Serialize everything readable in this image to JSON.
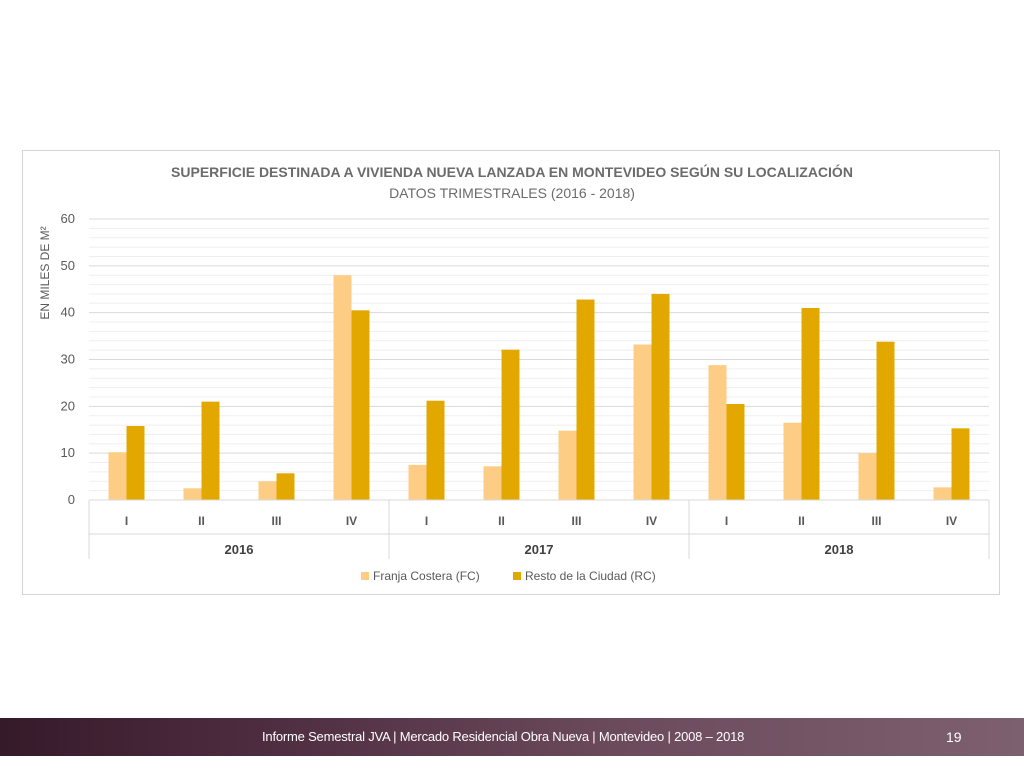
{
  "footer": {
    "text": "Informe Semestral JVA | Mercado Residencial Obra Nueva | Montevideo | 2008 – 2018",
    "page_number": "19"
  },
  "colors": {
    "series_fc": "#fdcd85",
    "series_rc": "#e2a800",
    "gridline": "#d9d9d9",
    "minor_gridline": "#efefef"
  },
  "chart_data": {
    "type": "bar",
    "title": "SUPERFICIE DESTINADA A VIVIENDA NUEVA LANZADA EN MONTEVIDEO SEGÚN SU LOCALIZACIÓN",
    "subtitle": "DATOS TRIMESTRALES (2016 - 2018)",
    "ylabel": "EN MILES DE M²",
    "ylim": [
      0,
      60
    ],
    "yticks": [
      "0",
      "10",
      "20",
      "30",
      "40",
      "50",
      "60"
    ],
    "grid": true,
    "legend_position": "bottom",
    "categories": [
      "I",
      "II",
      "III",
      "IV",
      "I",
      "II",
      "III",
      "IV",
      "I",
      "II",
      "III",
      "IV"
    ],
    "groups": [
      "2016",
      "2017",
      "2018"
    ],
    "series": [
      {
        "name": "Franja Costera (FC)",
        "values": [
          10.2,
          2.5,
          4.0,
          48.0,
          7.5,
          7.2,
          14.8,
          33.2,
          28.8,
          16.5,
          10.0,
          2.7
        ]
      },
      {
        "name": "Resto de la Ciudad (RC)",
        "values": [
          15.8,
          21.0,
          5.7,
          40.5,
          21.2,
          32.1,
          42.8,
          44.0,
          20.5,
          41.0,
          33.8,
          15.3
        ]
      }
    ]
  }
}
